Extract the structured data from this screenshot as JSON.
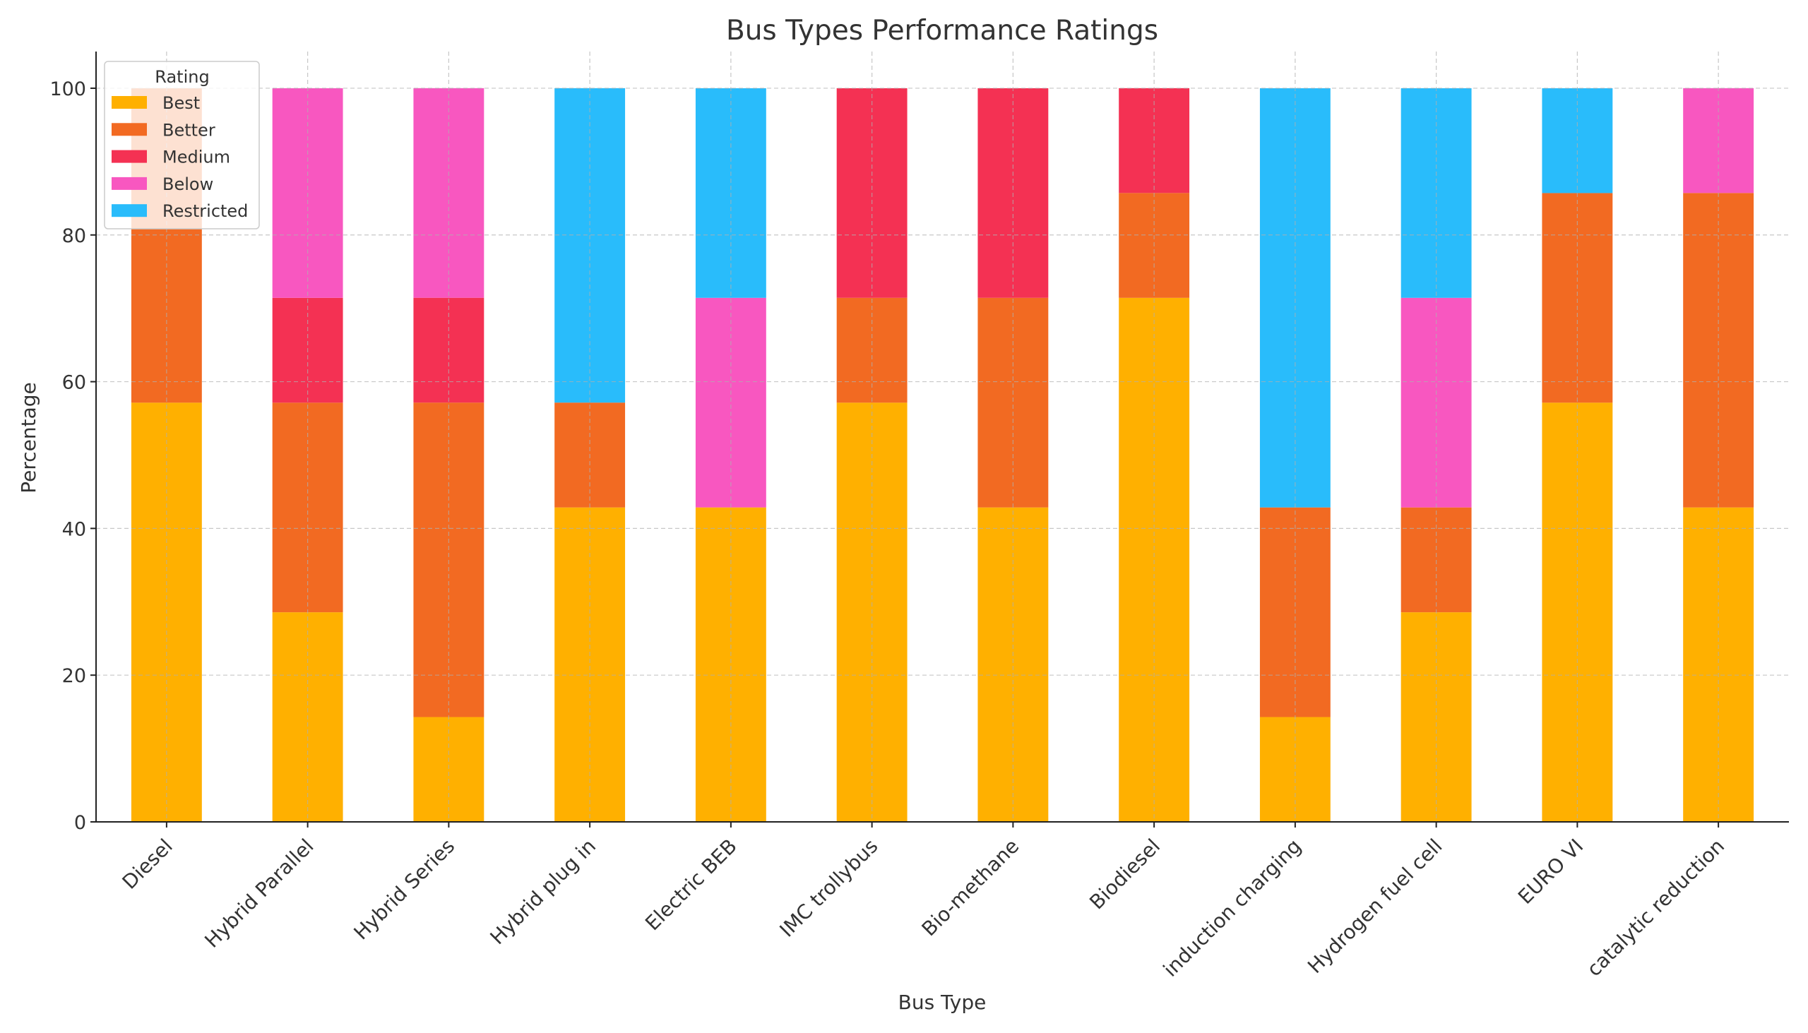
{
  "chart_data": {
    "type": "bar",
    "stacked": true,
    "title": "Bus Types Performance Ratings",
    "xlabel": "Bus Type",
    "ylabel": "Percentage",
    "ylim": [
      0,
      105
    ],
    "yticks": [
      0,
      20,
      40,
      60,
      80,
      100
    ],
    "grid": true,
    "legend": {
      "title": "Rating",
      "placement": "top-left"
    },
    "categories": [
      "Diesel",
      "Hybrid Parallel",
      "Hybrid Series",
      "Hybrid plug in",
      "Electric BEB",
      "IMC trollybus",
      "Bio-methane",
      "Biodiesel",
      "induction charging",
      "Hydrogen fuel cell",
      "EURO VI",
      "catalytic reduction"
    ],
    "series": [
      {
        "name": "Best",
        "color": "#FFB000",
        "values": [
          57.14,
          28.57,
          14.29,
          42.86,
          42.86,
          57.14,
          42.86,
          71.43,
          14.29,
          28.57,
          57.14,
          42.86
        ]
      },
      {
        "name": "Better",
        "color": "#F26A22",
        "values": [
          42.86,
          28.57,
          42.86,
          14.29,
          0,
          14.29,
          28.57,
          14.29,
          28.57,
          14.29,
          28.57,
          42.86
        ]
      },
      {
        "name": "Medium",
        "color": "#F43153",
        "values": [
          0,
          14.29,
          14.29,
          0,
          0,
          28.57,
          28.57,
          14.29,
          0,
          0,
          0,
          0
        ]
      },
      {
        "name": "Below",
        "color": "#F857C0",
        "values": [
          0,
          28.57,
          28.57,
          0,
          28.57,
          0,
          0,
          0,
          0,
          28.57,
          0,
          14.29
        ]
      },
      {
        "name": "Restricted",
        "color": "#29BCFB",
        "values": [
          0,
          0,
          0,
          42.86,
          28.57,
          0,
          0,
          0,
          57.14,
          28.57,
          14.29,
          0
        ]
      }
    ]
  }
}
